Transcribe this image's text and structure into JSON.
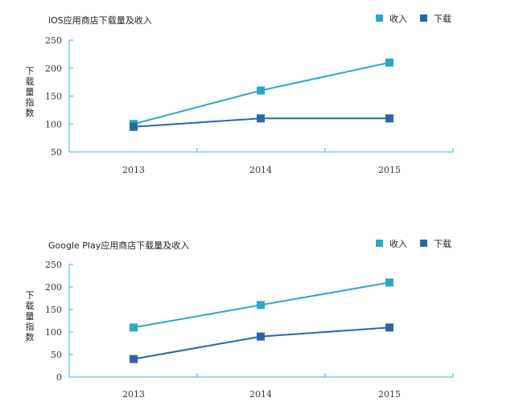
{
  "chart_data": [
    {
      "type": "line",
      "title": "iOS应用商店下载量及收入",
      "ylabel": "下载量指数",
      "categories": [
        "2013",
        "2014",
        "2015"
      ],
      "ylim": [
        50,
        250
      ],
      "yticks": [
        50,
        100,
        150,
        200,
        250
      ],
      "legend_position": "top-right",
      "series": [
        {
          "name": "收入",
          "values": [
            100,
            160,
            210
          ],
          "color": "#2aa8c9"
        },
        {
          "name": "下载",
          "values": [
            95,
            110,
            110
          ],
          "color": "#2867a9"
        }
      ]
    },
    {
      "type": "line",
      "title": "Google Play应用商店下载量及收入",
      "ylabel": "下载量指数",
      "categories": [
        "2013",
        "2014",
        "2015"
      ],
      "ylim": [
        0,
        250
      ],
      "yticks": [
        0,
        50,
        100,
        150,
        200,
        250
      ],
      "legend_position": "top-right",
      "series": [
        {
          "name": "收入",
          "values": [
            110,
            160,
            210
          ],
          "color": "#2aa8c9"
        },
        {
          "name": "下载",
          "values": [
            40,
            90,
            110
          ],
          "color": "#2867a9"
        }
      ]
    }
  ]
}
